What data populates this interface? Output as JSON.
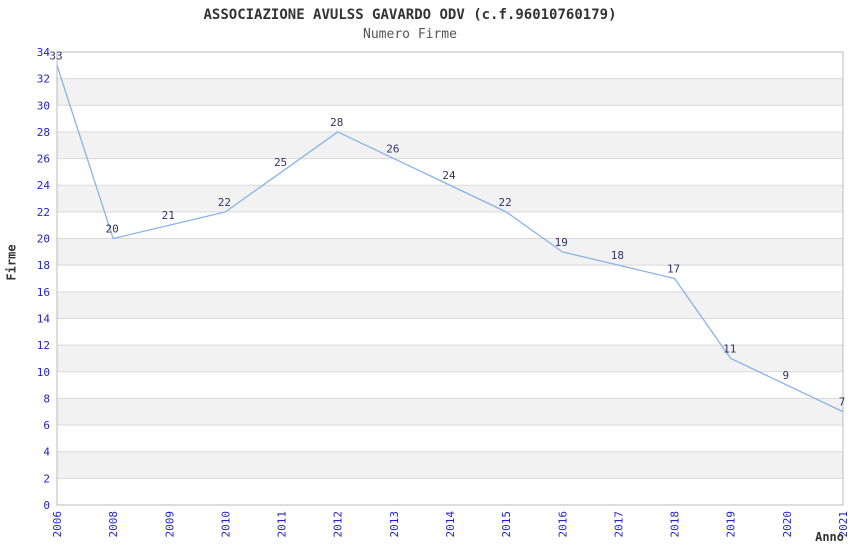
{
  "chart_data": {
    "type": "line",
    "title": "ASSOCIAZIONE AVULSS GAVARDO ODV (c.f.96010760179)",
    "subtitle": "Numero Firme",
    "xlabel": "Anno",
    "ylabel": "Firme",
    "categories": [
      "2006",
      "2008",
      "2009",
      "2010",
      "2011",
      "2012",
      "2013",
      "2014",
      "2015",
      "2016",
      "2017",
      "2018",
      "2019",
      "2020",
      "2021"
    ],
    "values": [
      33,
      20,
      21,
      22,
      25,
      28,
      26,
      24,
      22,
      19,
      18,
      17,
      11,
      9,
      7
    ],
    "ylim": [
      0,
      34
    ],
    "ytick_step": 2,
    "grid": true,
    "legend": "none",
    "band_fill_intervals": "every alternate 2-unit band starting at 2-4",
    "colors": {
      "line": "#88b4e8",
      "tick_label": "#2222cc",
      "value_label": "#333366",
      "band": "#f2f2f2",
      "gridline": "#d9d9d9",
      "frame": "#bbbbbb",
      "title": "#333333",
      "subtitle": "#555555",
      "axis_title": "#333333",
      "background": "#ffffff"
    }
  }
}
